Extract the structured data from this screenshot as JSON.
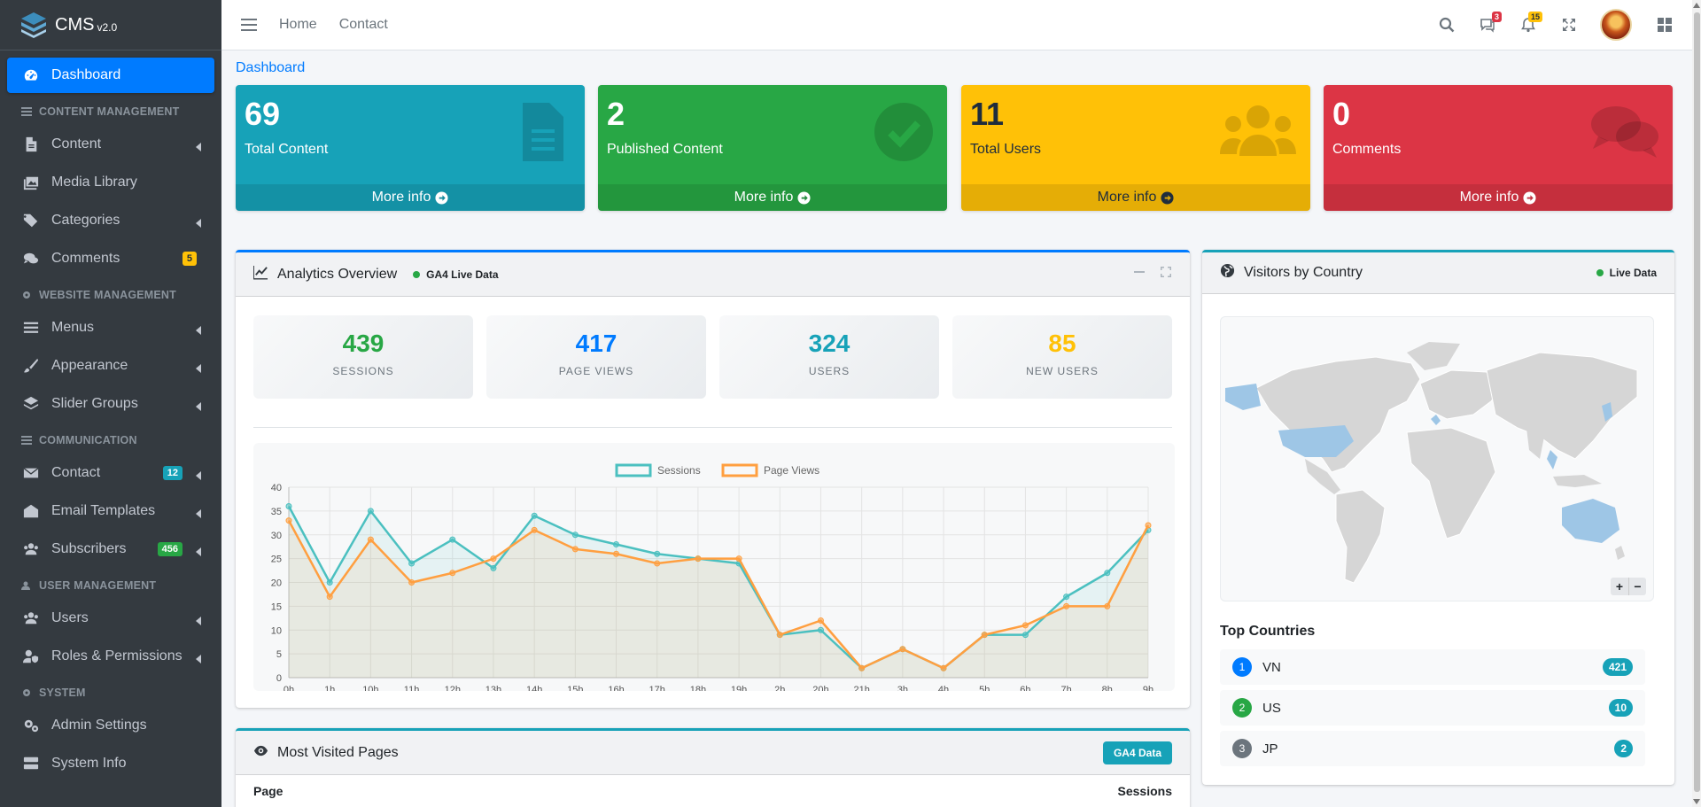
{
  "brand": {
    "name": "CMS",
    "version": "v2.0"
  },
  "sidebar": {
    "dashboard": "Dashboard",
    "sec_content": "CONTENT MANAGEMENT",
    "content": "Content",
    "media": "Media Library",
    "categories": "Categories",
    "comments": "Comments",
    "comments_badge": "5",
    "sec_website": "WEBSITE MANAGEMENT",
    "menus": "Menus",
    "appearance": "Appearance",
    "slider": "Slider Groups",
    "sec_comm": "COMMUNICATION",
    "contact": "Contact",
    "contact_badge": "12",
    "email_templates": "Email Templates",
    "subscribers": "Subscribers",
    "subscribers_badge": "456",
    "sec_user": "USER MANAGEMENT",
    "users": "Users",
    "roles": "Roles & Permissions",
    "sec_system": "SYSTEM",
    "admin_settings": "Admin Settings",
    "system_info": "System Info"
  },
  "topbar": {
    "home": "Home",
    "contact": "Contact",
    "messages_badge": "3",
    "notifications_badge": "15"
  },
  "breadcrumb": "Dashboard",
  "boxes": [
    {
      "value": "69",
      "label": "Total Content",
      "footer": "More info",
      "color": "#17a2b8"
    },
    {
      "value": "2",
      "label": "Published Content",
      "footer": "More info",
      "color": "#28a745"
    },
    {
      "value": "11",
      "label": "Total Users",
      "footer": "More info",
      "color": "#ffc107"
    },
    {
      "value": "0",
      "label": "Comments",
      "footer": "More info",
      "color": "#dc3545"
    }
  ],
  "analytics": {
    "title": "Analytics Overview",
    "live": "GA4 Live Data",
    "stats": [
      {
        "value": "439",
        "label": "SESSIONS",
        "color": "#28a745"
      },
      {
        "value": "417",
        "label": "PAGE VIEWS",
        "color": "#007bff"
      },
      {
        "value": "324",
        "label": "USERS",
        "color": "#17a2b8"
      },
      {
        "value": "85",
        "label": "NEW USERS",
        "color": "#ffc107"
      }
    ]
  },
  "chart_data": {
    "type": "line",
    "categories": [
      "0h",
      "1h",
      "10h",
      "11h",
      "12h",
      "13h",
      "14h",
      "15h",
      "16h",
      "17h",
      "18h",
      "19h",
      "2h",
      "20h",
      "21h",
      "3h",
      "4h",
      "5h",
      "6h",
      "7h",
      "8h",
      "9h"
    ],
    "series": [
      {
        "name": "Sessions",
        "color": "#4bc0c0",
        "values": [
          36,
          20,
          35,
          24,
          29,
          23,
          34,
          30,
          28,
          26,
          25,
          24,
          9,
          10,
          2,
          6,
          2,
          9,
          9,
          17,
          22,
          31
        ]
      },
      {
        "name": "Page Views",
        "color": "#ff9f40",
        "values": [
          33,
          17,
          29,
          20,
          22,
          25,
          31,
          27,
          26,
          24,
          25,
          25,
          9,
          12,
          2,
          6,
          2,
          9,
          11,
          15,
          15,
          32
        ]
      }
    ],
    "ylim": [
      0,
      40
    ],
    "yticks": [
      "0",
      "5",
      "10",
      "15",
      "20",
      "25",
      "30",
      "35",
      "40"
    ],
    "legend": "top",
    "grid": true
  },
  "visitors": {
    "title": "Visitors by Country",
    "live": "Live Data",
    "top_title": "Top Countries",
    "countries": [
      {
        "rank": "1",
        "code": "VN",
        "count": "421",
        "color": "#007bff"
      },
      {
        "rank": "2",
        "code": "US",
        "count": "10",
        "color": "#28a745"
      },
      {
        "rank": "3",
        "code": "JP",
        "count": "2",
        "color": "#6c757d"
      }
    ]
  },
  "most_visited": {
    "title": "Most Visited Pages",
    "badge": "GA4 Data",
    "col_page": "Page",
    "col_sessions": "Sessions"
  }
}
